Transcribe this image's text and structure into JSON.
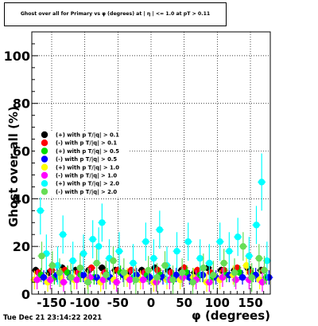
{
  "title": "Ghost over all for Primary vs φ (degrees) at | η | <= 1.0 at pT > 0.11",
  "datestamp": "Tue Dec 21 23:14:22 2021",
  "chart_data": {
    "type": "scatter",
    "title": "Ghost over all for Primary vs φ (degrees) at | η | <= 1.0 at pT > 0.11",
    "xlabel": "φ (degrees)",
    "ylabel": "Ghost  over all (%)",
    "xlim": [
      -180,
      180
    ],
    "ylim": [
      0,
      110
    ],
    "x_ticks": [
      -150,
      -100,
      -50,
      0,
      50,
      100,
      150
    ],
    "x_tick_labels": [
      "-150",
      "-100",
      "-50",
      "0",
      "50",
      "100",
      "150"
    ],
    "y_ticks": [
      0,
      20,
      40,
      60,
      80,
      100
    ],
    "y_tick_labels": [
      "0",
      "20",
      "40",
      "60",
      "80",
      "100"
    ],
    "grid": true,
    "legend_position": "left-middle",
    "series": [
      {
        "name": "(+) with p T/|q| > 0.1",
        "color": "#000000",
        "x": [
          -174,
          -154,
          -134,
          -114,
          -94,
          -74,
          -54,
          -34,
          -14,
          6,
          26,
          46,
          66,
          86,
          106,
          126,
          146,
          166
        ],
        "y": [
          10,
          9,
          11,
          10,
          10,
          11,
          10,
          9,
          10,
          11,
          10,
          10,
          9,
          11,
          10,
          10,
          11,
          10
        ],
        "err": [
          1.5,
          1.5,
          1.5,
          1.5,
          1.5,
          1.5,
          1.5,
          1.5,
          1.5,
          1.5,
          1.5,
          1.5,
          1.5,
          1.5,
          1.5,
          1.5,
          1.5,
          1.5
        ]
      },
      {
        "name": "(-) with p T/|q| > 0.1",
        "color": "#ff0000",
        "x": [
          -170,
          -150,
          -130,
          -110,
          -90,
          -70,
          -50,
          -30,
          -10,
          10,
          30,
          50,
          70,
          90,
          110,
          130,
          150,
          170
        ],
        "y": [
          9,
          10,
          10,
          9,
          11,
          9,
          10,
          10,
          9,
          10,
          9,
          11,
          10,
          9,
          10,
          11,
          9,
          10
        ],
        "err": [
          1.5,
          1.5,
          1.5,
          1.5,
          1.5,
          1.5,
          1.5,
          1.5,
          1.5,
          1.5,
          1.5,
          1.5,
          1.5,
          1.5,
          1.5,
          1.5,
          1.5,
          1.5
        ]
      },
      {
        "name": "(+) with p T/|q| > 0.5",
        "color": "#00dd00",
        "x": [
          -166,
          -146,
          -126,
          -106,
          -86,
          -66,
          -46,
          -26,
          -6,
          14,
          34,
          54,
          74,
          94,
          114,
          134,
          154,
          174
        ],
        "y": [
          8,
          7,
          9,
          8,
          7,
          8,
          9,
          7,
          8,
          8,
          7,
          9,
          8,
          7,
          8,
          9,
          8,
          7
        ],
        "err": [
          3,
          3,
          3,
          3,
          3,
          3,
          3,
          3,
          3,
          3,
          3,
          3,
          3,
          3,
          3,
          3,
          3,
          3
        ]
      },
      {
        "name": "(-) with p T/|q| > 0.5",
        "color": "#0000ff",
        "x": [
          -162,
          -142,
          -122,
          -102,
          -82,
          -62,
          -42,
          -22,
          -2,
          18,
          38,
          58,
          78,
          98,
          118,
          138,
          158,
          178
        ],
        "y": [
          7,
          8,
          7,
          8,
          7,
          7,
          8,
          8,
          7,
          7,
          8,
          7,
          8,
          7,
          8,
          7,
          8,
          7
        ],
        "err": [
          3,
          3,
          3,
          3,
          3,
          3,
          3,
          3,
          3,
          3,
          3,
          3,
          3,
          3,
          3,
          3,
          3,
          3
        ]
      },
      {
        "name": "(+) with p T/|q| > 1.0",
        "color": "#ffff00",
        "x": [
          -176,
          -156,
          -136,
          -116,
          -96,
          -76,
          -56,
          -36,
          -16,
          4,
          24,
          44,
          64,
          84,
          104,
          124,
          144,
          164
        ],
        "y": [
          6,
          5,
          7,
          6,
          6,
          5,
          6,
          7,
          6,
          5,
          6,
          6,
          7,
          5,
          6,
          8,
          12,
          6
        ],
        "err": [
          4,
          4,
          4,
          4,
          4,
          4,
          4,
          4,
          4,
          4,
          4,
          4,
          4,
          4,
          4,
          4,
          4,
          4
        ]
      },
      {
        "name": "(-) with p T/|q| > 1.0",
        "color": "#ff00ff",
        "x": [
          -172,
          -152,
          -132,
          -112,
          -92,
          -72,
          -52,
          -32,
          -12,
          8,
          28,
          48,
          68,
          88,
          108,
          128,
          148,
          168
        ],
        "y": [
          6,
          6,
          5,
          6,
          7,
          6,
          5,
          6,
          6,
          5,
          6,
          7,
          6,
          5,
          7,
          6,
          6,
          5
        ],
        "err": [
          4,
          4,
          4,
          4,
          4,
          4,
          4,
          4,
          4,
          4,
          4,
          4,
          4,
          4,
          4,
          4,
          4,
          4
        ]
      },
      {
        "name": "(+) with p T/|q| > 2.0",
        "color": "#00ffff",
        "x": [
          -167,
          -158,
          -141,
          -133,
          -118,
          -102,
          -88,
          -79,
          -74,
          -63,
          -48,
          -27,
          -8,
          4,
          13,
          24,
          39,
          56,
          74,
          88,
          104,
          118,
          131,
          148,
          159,
          167,
          175
        ],
        "y": [
          35,
          17,
          12,
          25,
          14,
          17,
          23,
          20,
          30,
          15,
          18,
          13,
          22,
          15,
          27,
          12,
          18,
          22,
          15,
          13,
          22,
          18,
          24,
          16,
          29,
          47,
          14
        ],
        "err": [
          10,
          8,
          8,
          8,
          8,
          8,
          8,
          8,
          8,
          8,
          8,
          8,
          8,
          8,
          8,
          8,
          8,
          8,
          8,
          8,
          8,
          8,
          8,
          8,
          8,
          12,
          8
        ]
      },
      {
        "name": "(-) with p T/|q| > 2.0",
        "color": "#66dd55",
        "x": [
          -165,
          -149,
          -138,
          -121,
          -107,
          -95,
          -82,
          -68,
          -57,
          -41,
          -23,
          -4,
          9,
          21,
          33,
          47,
          63,
          79,
          94,
          110,
          126,
          139,
          152,
          163,
          171
        ],
        "y": [
          16,
          12,
          9,
          7,
          11,
          5,
          13,
          8,
          14,
          9,
          6,
          10,
          7,
          12,
          6,
          9,
          5,
          11,
          8,
          13,
          9,
          20,
          7,
          15,
          10
        ],
        "err": [
          6,
          6,
          6,
          6,
          6,
          6,
          6,
          6,
          6,
          6,
          6,
          6,
          6,
          6,
          6,
          6,
          6,
          6,
          6,
          6,
          6,
          6,
          6,
          6,
          6
        ]
      }
    ]
  }
}
